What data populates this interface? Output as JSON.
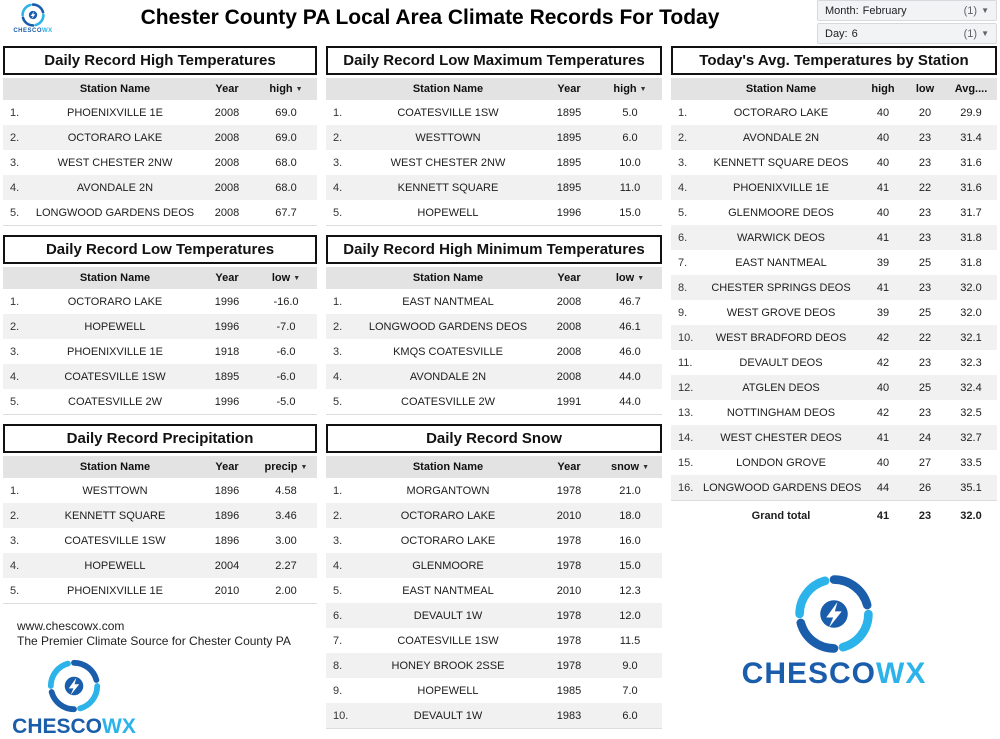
{
  "icons": {
    "sort_arrow": "▼",
    "caret": "▼"
  },
  "colors": {
    "brand_dark": "#1a5dab",
    "brand_light": "#2bb3ea",
    "header_bg": "#e3e3e3",
    "row_alt": "#f1f1f1"
  },
  "header": {
    "title": "Chester County PA Local Area Climate Records For Today",
    "filters": [
      {
        "label": "Month:",
        "value": "February",
        "count": "(1)"
      },
      {
        "label": "Day:",
        "value": "6",
        "count": "(1)"
      }
    ]
  },
  "brand": {
    "name_dark": "CHESCO",
    "name_light": "WX"
  },
  "footer": {
    "site": "www.chescowx.com",
    "tagline": "The Premier Climate Source for Chester County PA"
  },
  "tables": {
    "record_high": {
      "title": "Daily Record High Temperatures",
      "columns": [
        "",
        "Station Name",
        "Year",
        "high"
      ],
      "sort_col": 3,
      "rows": [
        [
          "1.",
          "PHOENIXVILLE 1E",
          "2008",
          "69.0"
        ],
        [
          "2.",
          "OCTORARO LAKE",
          "2008",
          "69.0"
        ],
        [
          "3.",
          "WEST CHESTER 2NW",
          "2008",
          "68.0"
        ],
        [
          "4.",
          "AVONDALE 2N",
          "2008",
          "68.0"
        ],
        [
          "5.",
          "LONGWOOD GARDENS DEOS",
          "2008",
          "67.7"
        ]
      ]
    },
    "record_low": {
      "title": "Daily Record Low Temperatures",
      "columns": [
        "",
        "Station Name",
        "Year",
        "low"
      ],
      "sort_col": 3,
      "rows": [
        [
          "1.",
          "OCTORARO LAKE",
          "1996",
          "-16.0"
        ],
        [
          "2.",
          "HOPEWELL",
          "1996",
          "-7.0"
        ],
        [
          "3.",
          "PHOENIXVILLE 1E",
          "1918",
          "-6.0"
        ],
        [
          "4.",
          "COATESVILLE 1SW",
          "1895",
          "-6.0"
        ],
        [
          "5.",
          "COATESVILLE 2W",
          "1996",
          "-5.0"
        ]
      ]
    },
    "record_precip": {
      "title": "Daily Record Precipitation",
      "columns": [
        "",
        "Station Name",
        "Year",
        "precip"
      ],
      "sort_col": 3,
      "rows": [
        [
          "1.",
          "WESTTOWN",
          "1896",
          "4.58"
        ],
        [
          "2.",
          "KENNETT SQUARE",
          "1896",
          "3.46"
        ],
        [
          "3.",
          "COATESVILLE 1SW",
          "1896",
          "3.00"
        ],
        [
          "4.",
          "HOPEWELL",
          "2004",
          "2.27"
        ],
        [
          "5.",
          "PHOENIXVILLE 1E",
          "2010",
          "2.00"
        ]
      ]
    },
    "record_low_max": {
      "title": "Daily Record Low Maximum Temperatures",
      "columns": [
        "",
        "Station Name",
        "Year",
        "high"
      ],
      "sort_col": 3,
      "rows": [
        [
          "1.",
          "COATESVILLE 1SW",
          "1895",
          "5.0"
        ],
        [
          "2.",
          "WESTTOWN",
          "1895",
          "6.0"
        ],
        [
          "3.",
          "WEST CHESTER 2NW",
          "1895",
          "10.0"
        ],
        [
          "4.",
          "KENNETT SQUARE",
          "1895",
          "11.0"
        ],
        [
          "5.",
          "HOPEWELL",
          "1996",
          "15.0"
        ]
      ]
    },
    "record_high_min": {
      "title": "Daily Record High Minimum Temperatures",
      "columns": [
        "",
        "Station Name",
        "Year",
        "low"
      ],
      "sort_col": 3,
      "rows": [
        [
          "1.",
          "EAST NANTMEAL",
          "2008",
          "46.7"
        ],
        [
          "2.",
          "LONGWOOD GARDENS DEOS",
          "2008",
          "46.1"
        ],
        [
          "3.",
          "KMQS COATESVILLE",
          "2008",
          "46.0"
        ],
        [
          "4.",
          "AVONDALE 2N",
          "2008",
          "44.0"
        ],
        [
          "5.",
          "COATESVILLE 2W",
          "1991",
          "44.0"
        ]
      ]
    },
    "record_snow": {
      "title": "Daily Record Snow",
      "columns": [
        "",
        "Station Name",
        "Year",
        "snow"
      ],
      "sort_col": 3,
      "rows": [
        [
          "1.",
          "MORGANTOWN",
          "1978",
          "21.0"
        ],
        [
          "2.",
          "OCTORARO LAKE",
          "2010",
          "18.0"
        ],
        [
          "3.",
          "OCTORARO LAKE",
          "1978",
          "16.0"
        ],
        [
          "4.",
          "GLENMOORE",
          "1978",
          "15.0"
        ],
        [
          "5.",
          "EAST NANTMEAL",
          "2010",
          "12.3"
        ],
        [
          "6.",
          "DEVAULT 1W",
          "1978",
          "12.0"
        ],
        [
          "7.",
          "COATESVILLE 1SW",
          "1978",
          "11.5"
        ],
        [
          "8.",
          "HONEY BROOK 2SSE",
          "1978",
          "9.0"
        ],
        [
          "9.",
          "HOPEWELL",
          "1985",
          "7.0"
        ],
        [
          "10.",
          "DEVAULT 1W",
          "1983",
          "6.0"
        ]
      ]
    },
    "todays_avg": {
      "title": "Today's Avg. Temperatures by Station",
      "columns": [
        "",
        "Station Name",
        "high",
        "low",
        "Avg...."
      ],
      "sort_col": -1,
      "rows": [
        [
          "1.",
          "OCTORARO LAKE",
          "40",
          "20",
          "29.9"
        ],
        [
          "2.",
          "AVONDALE 2N",
          "40",
          "23",
          "31.4"
        ],
        [
          "3.",
          "KENNETT SQUARE DEOS",
          "40",
          "23",
          "31.6"
        ],
        [
          "4.",
          "PHOENIXVILLE 1E",
          "41",
          "22",
          "31.6"
        ],
        [
          "5.",
          "GLENMOORE DEOS",
          "40",
          "23",
          "31.7"
        ],
        [
          "6.",
          "WARWICK DEOS",
          "41",
          "23",
          "31.8"
        ],
        [
          "7.",
          "EAST NANTMEAL",
          "39",
          "25",
          "31.8"
        ],
        [
          "8.",
          "CHESTER SPRINGS DEOS",
          "41",
          "23",
          "32.0"
        ],
        [
          "9.",
          "WEST GROVE DEOS",
          "39",
          "25",
          "32.0"
        ],
        [
          "10.",
          "WEST BRADFORD DEOS",
          "42",
          "22",
          "32.1"
        ],
        [
          "11.",
          "DEVAULT DEOS",
          "42",
          "23",
          "32.3"
        ],
        [
          "12.",
          "ATGLEN DEOS",
          "40",
          "25",
          "32.4"
        ],
        [
          "13.",
          "NOTTINGHAM DEOS",
          "42",
          "23",
          "32.5"
        ],
        [
          "14.",
          "WEST CHESTER DEOS",
          "41",
          "24",
          "32.7"
        ],
        [
          "15.",
          "LONDON GROVE",
          "40",
          "27",
          "33.5"
        ],
        [
          "16.",
          "LONGWOOD GARDENS DEOS",
          "44",
          "26",
          "35.1"
        ]
      ],
      "total": {
        "label": "Grand total",
        "high": "41",
        "low": "23",
        "avg": "32.0"
      }
    }
  }
}
